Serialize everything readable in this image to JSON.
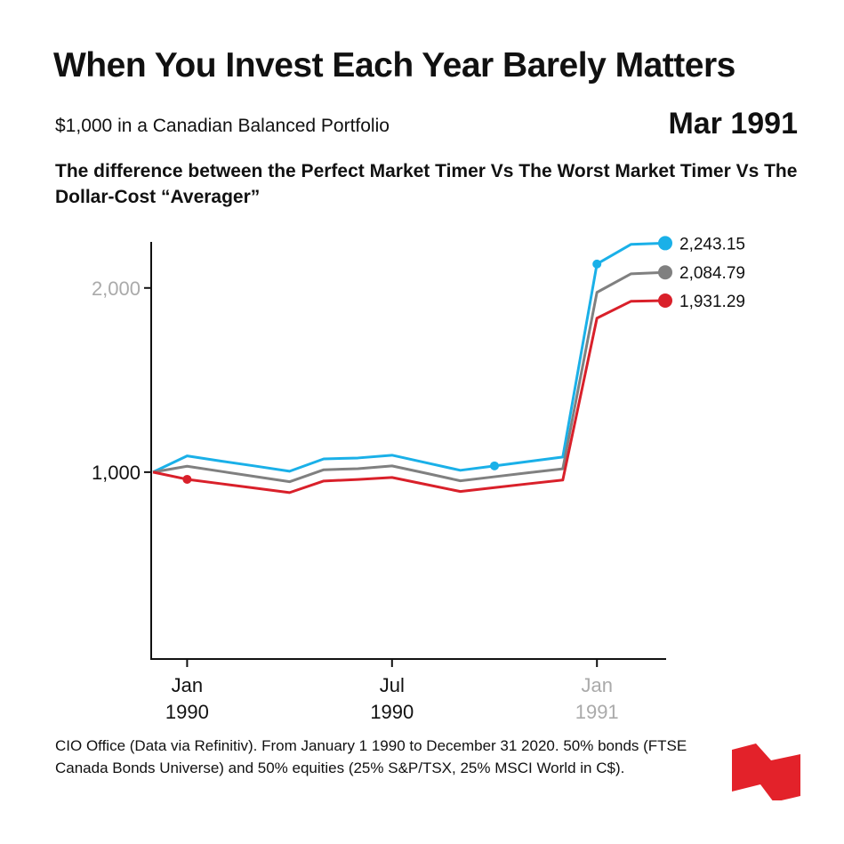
{
  "title": "When You Invest Each Year Barely Matters",
  "subtitle": "$1,000 in a Canadian Balanced Portfolio",
  "current_date": "Mar 1991",
  "description": "The difference between the Perfect Market Timer Vs The Worst Market Timer Vs The Dollar-Cost “Averager”",
  "footer": "CIO Office (Data via Refinitiv). From January 1 1990 to December 31 2020. 50% bonds (FTSE Canada Bonds Universe) and 50% equities (25% S&P/TSX, 25% MSCI World in C$).",
  "chart_data": {
    "type": "line",
    "x": [
      "Dec 1989",
      "Jan 1990",
      "Feb 1990",
      "Mar 1990",
      "Apr 1990",
      "May 1990",
      "Jun 1990",
      "Jul 1990",
      "Aug 1990",
      "Sep 1990",
      "Oct 1990",
      "Nov 1990",
      "Dec 1990",
      "Jan 1991",
      "Feb 1991",
      "Mar 1991"
    ],
    "ylim": [
      0,
      2250
    ],
    "yticks": [
      {
        "value": 1000,
        "label": "1,000",
        "color": "#111111"
      },
      {
        "value": 2000,
        "label": "2,000",
        "color": "#aaaaaa"
      }
    ],
    "xticks": [
      {
        "index": 1,
        "month": "Jan",
        "year": "1990",
        "color": "#111111"
      },
      {
        "index": 7,
        "month": "Jul",
        "year": "1990",
        "color": "#111111"
      },
      {
        "index": 13,
        "month": "Jan",
        "year": "1991",
        "color": "#aaaaaa"
      }
    ],
    "series": [
      {
        "name": "Perfect Market Timer",
        "color": "#1ab0e8",
        "end_label": "2,243.15",
        "marker_indices": [
          10,
          13
        ],
        "values": [
          1000,
          1088,
          1060,
          1033,
          1005,
          1072,
          1077,
          1092,
          1051,
          1010,
          1034,
          1058,
          1082,
          2130,
          2237,
          2243.15
        ]
      },
      {
        "name": "Dollar-Cost Averager",
        "color": "#808080",
        "end_label": "2,084.79",
        "marker_indices": [],
        "values": [
          1000,
          1032,
          1004,
          976,
          948,
          1013,
          1019,
          1034,
          994,
          953,
          975,
          997,
          1018,
          1976,
          2077,
          2084.79
        ]
      },
      {
        "name": "Worst Market Timer",
        "color": "#d9202a",
        "end_label": "1,931.29",
        "marker_indices": [
          1
        ],
        "values": [
          1000,
          961,
          937,
          913,
          889,
          952,
          960,
          971,
          933,
          895,
          916,
          937,
          957,
          1836,
          1928,
          1931.29
        ]
      }
    ]
  }
}
